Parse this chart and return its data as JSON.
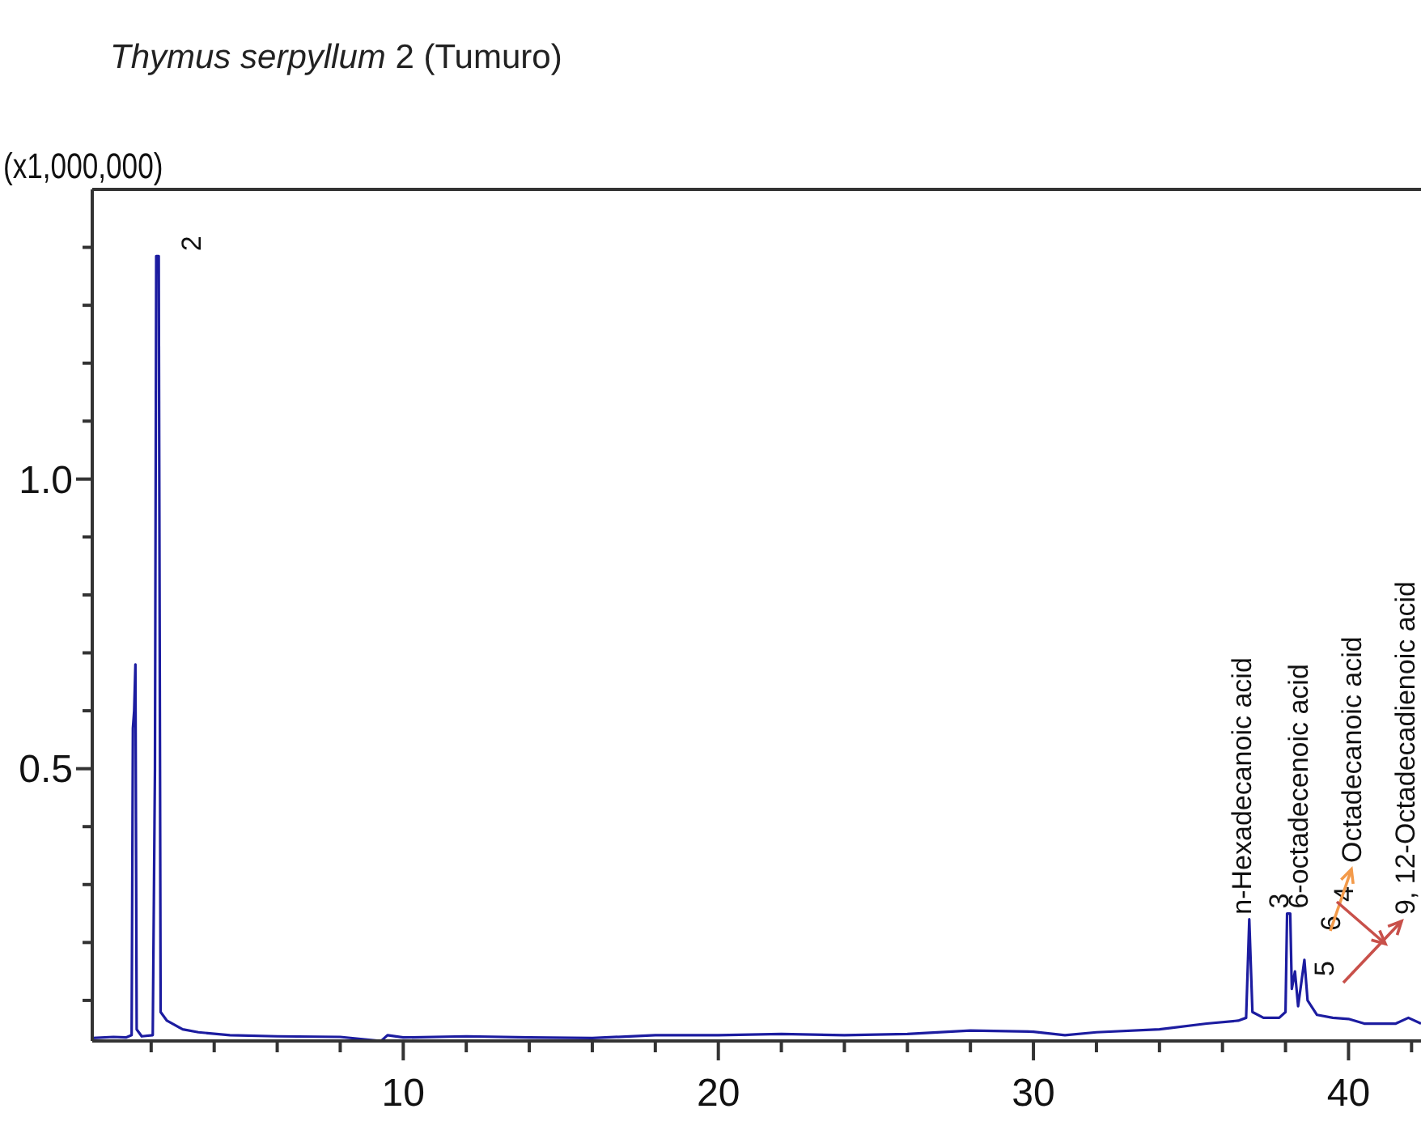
{
  "chart_data": {
    "type": "line",
    "title": "Thymus serpyllum  2 (Tumuro)",
    "ylabel": "(x1,000,000)",
    "x": [
      0.13,
      0.8,
      1.2,
      1.38,
      1.42,
      1.46,
      1.5,
      1.54,
      1.7,
      2.05,
      2.12,
      2.16,
      2.24,
      2.3,
      2.5,
      3.0,
      3.5,
      4.5,
      6,
      8,
      9.3,
      9.5,
      10,
      12,
      14,
      16,
      18,
      20,
      22,
      24,
      26,
      28,
      30,
      31,
      32,
      34,
      35.5,
      36.5,
      36.75,
      36.85,
      36.95,
      37.3,
      37.8,
      38.0,
      38.05,
      38.15,
      38.2,
      38.3,
      38.4,
      38.5,
      38.6,
      38.7,
      39,
      39.5,
      40,
      40.5,
      41,
      41.5,
      41.9,
      42.3
    ],
    "series": [
      {
        "color": "#1c1ca0",
        "values": [
          0.035,
          0.037,
          0.036,
          0.04,
          0.57,
          0.6,
          0.68,
          0.05,
          0.038,
          0.04,
          0.5,
          1.385,
          1.385,
          0.08,
          0.065,
          0.05,
          0.045,
          0.04,
          0.038,
          0.037,
          0.03,
          0.04,
          0.036,
          0.038,
          0.036,
          0.035,
          0.04,
          0.04,
          0.042,
          0.04,
          0.042,
          0.048,
          0.046,
          0.04,
          0.045,
          0.05,
          0.06,
          0.065,
          0.07,
          0.24,
          0.08,
          0.07,
          0.07,
          0.08,
          0.25,
          0.25,
          0.12,
          0.15,
          0.09,
          0.13,
          0.17,
          0.1,
          0.075,
          0.07,
          0.068,
          0.06,
          0.06,
          0.06,
          0.07,
          0.06
        ]
      }
    ],
    "xlim": [
      0.13,
      42.3
    ],
    "ylim": [
      0.03,
      1.5
    ],
    "xticks": [
      {
        "value": 2,
        "label": null
      },
      {
        "value": 4,
        "label": null
      },
      {
        "value": 6,
        "label": null
      },
      {
        "value": 8,
        "label": null
      },
      10,
      {
        "value": 12,
        "label": null
      },
      {
        "value": 14,
        "label": null
      },
      {
        "value": 16,
        "label": null
      },
      {
        "value": 18,
        "label": null
      },
      20,
      {
        "value": 22,
        "label": null
      },
      {
        "value": 24,
        "label": null
      },
      {
        "value": 26,
        "label": null
      },
      {
        "value": 28,
        "label": null
      },
      30,
      {
        "value": 32,
        "label": null
      },
      {
        "value": 34,
        "label": null
      },
      {
        "value": 36,
        "label": null
      },
      {
        "value": 38,
        "label": null
      },
      40,
      {
        "value": 42,
        "label": null
      }
    ],
    "yticks": [
      {
        "value": 0.1,
        "label": null
      },
      {
        "value": 0.2,
        "label": null
      },
      {
        "value": 0.3,
        "label": null
      },
      {
        "value": 0.4,
        "label": null
      },
      0.5,
      {
        "value": 0.6,
        "label": null
      },
      {
        "value": 0.7,
        "label": null
      },
      {
        "value": 0.8,
        "label": null
      },
      {
        "value": 0.9,
        "label": null
      },
      {
        "value": 1.0,
        "label": "1.0"
      },
      {
        "value": 1.1,
        "label": null
      },
      {
        "value": 1.2,
        "label": null
      },
      {
        "value": 1.3,
        "label": null
      },
      {
        "value": 1.4,
        "label": null
      }
    ],
    "annotations": [
      {
        "text": "2",
        "x": 2.2,
        "y": 1.385
      },
      {
        "text": "n-Hexadecanoic acid",
        "x": 36.85,
        "y": 0.24
      },
      {
        "text": "3",
        "x": 38.1,
        "y": 0.25
      },
      {
        "text": "6-octadecenoic acid",
        "x": 38.1,
        "y": 0.25
      },
      "4",
      "Octadecanoic acid",
      "6",
      "5",
      "9, 12-Octadecadienoic acid"
    ]
  }
}
